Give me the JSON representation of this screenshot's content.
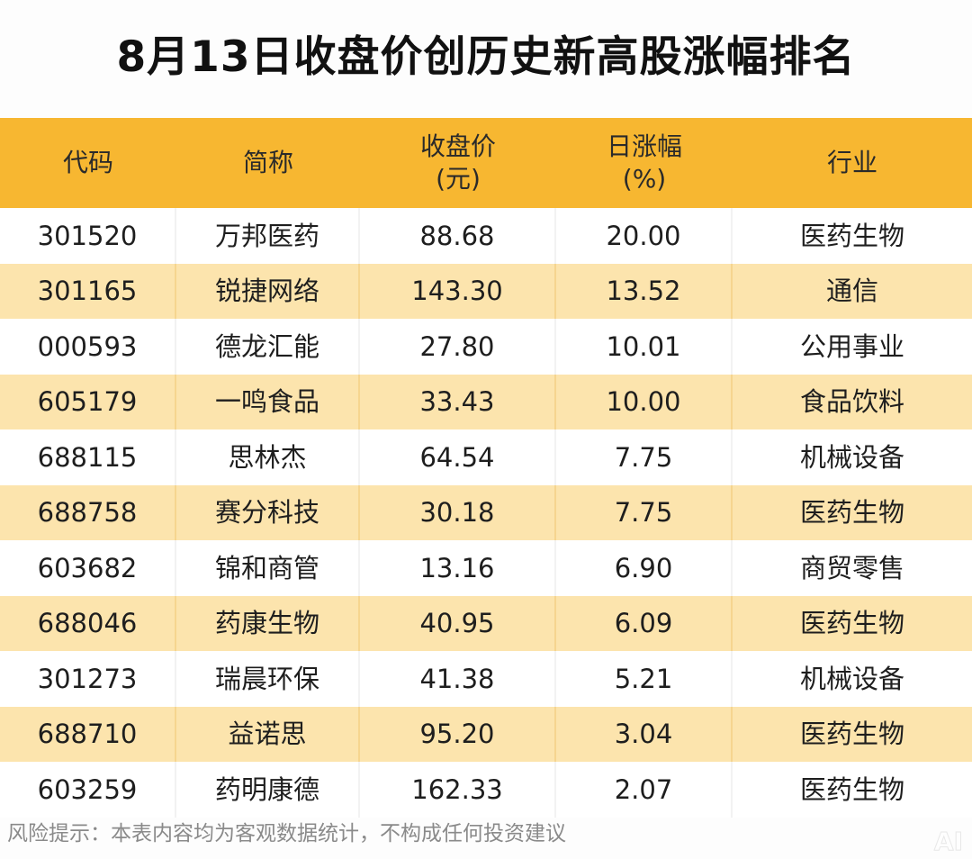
{
  "title": "8月13日收盘价创历史新高股涨幅排名",
  "chart_data": {
    "type": "table",
    "columns": [
      {
        "line1": "代码",
        "line2": ""
      },
      {
        "line1": "简称",
        "line2": ""
      },
      {
        "line1": "收盘价",
        "line2": "(元)"
      },
      {
        "line1": "日涨幅",
        "line2": "(%)"
      },
      {
        "line1": "行业",
        "line2": ""
      }
    ],
    "rows": [
      [
        "301520",
        "万邦医药",
        "88.68",
        "20.00",
        "医药生物"
      ],
      [
        "301165",
        "锐捷网络",
        "143.30",
        "13.52",
        "通信"
      ],
      [
        "000593",
        "德龙汇能",
        "27.80",
        "10.01",
        "公用事业"
      ],
      [
        "605179",
        "一鸣食品",
        "33.43",
        "10.00",
        "食品饮料"
      ],
      [
        "688115",
        "思林杰",
        "64.54",
        "7.75",
        "机械设备"
      ],
      [
        "688758",
        "赛分科技",
        "30.18",
        "7.75",
        "医药生物"
      ],
      [
        "603682",
        "锦和商管",
        "13.16",
        "6.90",
        "商贸零售"
      ],
      [
        "688046",
        "药康生物",
        "40.95",
        "6.09",
        "医药生物"
      ],
      [
        "301273",
        "瑞晨环保",
        "41.38",
        "5.21",
        "机械设备"
      ],
      [
        "688710",
        "益诺思",
        "95.20",
        "3.04",
        "医药生物"
      ],
      [
        "603259",
        "药明康德",
        "162.33",
        "2.07",
        "医药生物"
      ]
    ]
  },
  "footer": "风险提示：本表内容均为客观数据统计，不构成任何投资建议",
  "colors": {
    "header_bg": "#f7b731",
    "stripe_bg": "#fce4ad",
    "row_bg": "#ffffff"
  }
}
